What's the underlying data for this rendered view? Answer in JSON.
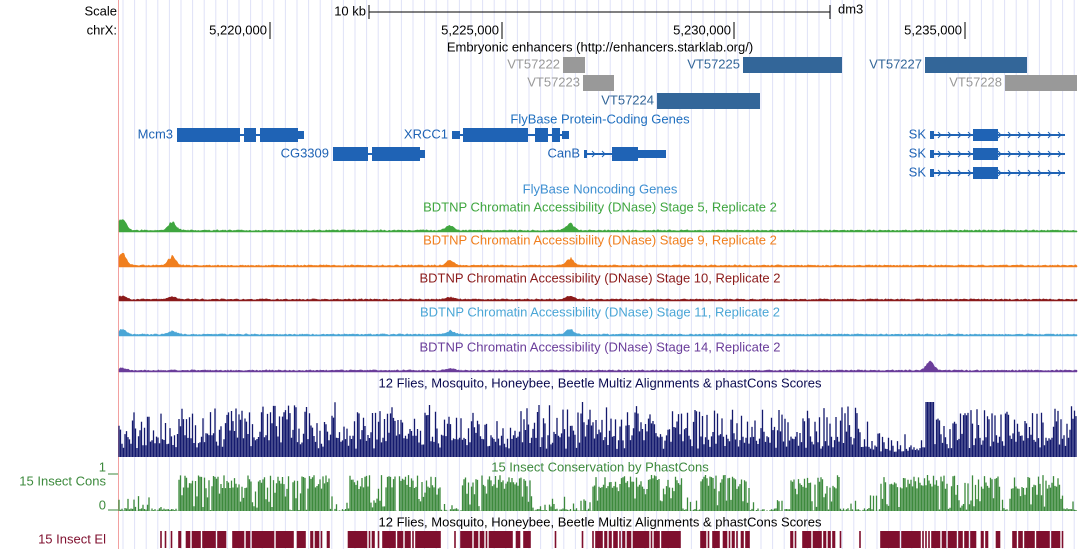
{
  "ruler": {
    "scale_label": "Scale",
    "scale_size": "10 kb",
    "assembly": "dm3",
    "chrom": "chrX:",
    "positions": [
      "5,220,000",
      "5,225,000",
      "5,230,000",
      "5,235,000"
    ]
  },
  "tracks": {
    "enhancers": {
      "title": "Embryonic enhancers (http://enhancers.starklab.org/)",
      "features": [
        "VT57222",
        "VT57225",
        "VT57227",
        "VT57223",
        "VT57228",
        "VT57224"
      ]
    },
    "protein_genes": {
      "title": "FlyBase Protein-Coding Genes",
      "features": [
        "Mcm3",
        "XRCC1",
        "SK",
        "CG3309",
        "CanB",
        "SK",
        "SK"
      ]
    },
    "noncoding_genes": {
      "title": "FlyBase Noncoding Genes"
    },
    "dnase": [
      "BDTNP Chromatin Accessibility (DNase) Stage 5, Replicate 2",
      "BDTNP Chromatin Accessibility (DNase) Stage 9, Replicate 2",
      "BDTNP Chromatin Accessibility (DNase) Stage 10, Replicate 2",
      "BDTNP Chromatin Accessibility (DNase) Stage 11, Replicate 2",
      "BDTNP Chromatin Accessibility (DNase) Stage 14, Replicate 2"
    ],
    "multiz": {
      "title": "12 Flies, Mosquito, Honeybee, Beetle Multiz Alignments & phastCons Scores"
    },
    "phastcons": {
      "label": "15 Insect Cons",
      "title": "15 Insect Conservation by PhastCons",
      "max_label": 1,
      "min_label": 0
    },
    "elements": {
      "label": "15 Insect El",
      "title": "12 Flies, Mosquito, Honeybee, Beetle Multiz Alignments & phastCons Scores"
    }
  }
}
